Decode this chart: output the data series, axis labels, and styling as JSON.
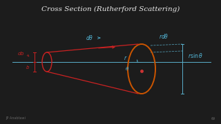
{
  "bg_color": "#1c1c1c",
  "title": "Cross Section (Rutherford Scattering)",
  "title_color": "#e8e8e8",
  "title_fontsize": 7.5,
  "axis_color": "#5ab0cc",
  "red_color": "#cc2222",
  "orange_color": "#cc5500",
  "cyan_color": "#55bbdd",
  "small_text_color": "#666666",
  "bottom_left_text": "JP Anabtawi",
  "bottom_right_text": "69",
  "fig_w": 3.2,
  "fig_h": 1.8,
  "dpi": 100
}
